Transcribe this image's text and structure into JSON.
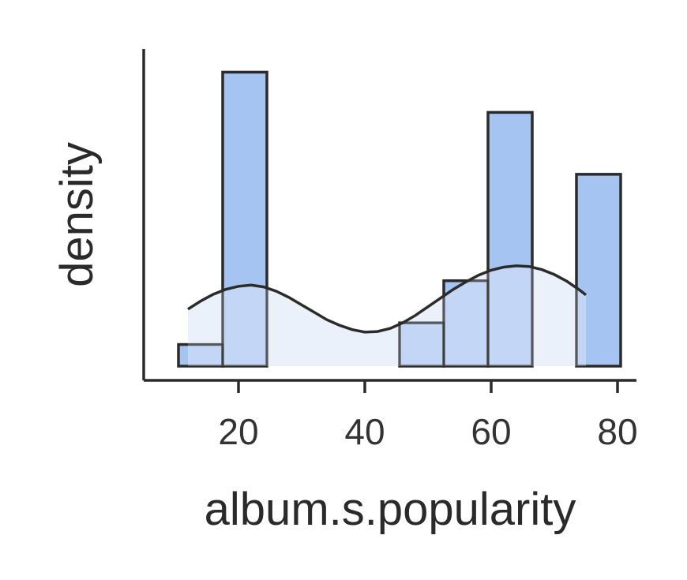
{
  "chart_data": {
    "type": "histogram",
    "xlabel": "album.s.popularity",
    "ylabel": "density",
    "xlim": [
      5,
      83
    ],
    "ylim": [
      0,
      0.051
    ],
    "x_ticks": [
      20,
      40,
      60,
      80
    ],
    "bins": [
      {
        "x0": 10.5,
        "x1": 17.5,
        "density": 0.0035
      },
      {
        "x0": 17.5,
        "x1": 24.5,
        "density": 0.0475
      },
      {
        "x0": 24.5,
        "x1": 31.5,
        "density": 0
      },
      {
        "x0": 31.5,
        "x1": 38.5,
        "density": 0
      },
      {
        "x0": 38.5,
        "x1": 45.5,
        "density": 0
      },
      {
        "x0": 45.5,
        "x1": 52.5,
        "density": 0.007
      },
      {
        "x0": 52.5,
        "x1": 59.5,
        "density": 0.0138
      },
      {
        "x0": 59.5,
        "x1": 66.5,
        "density": 0.041
      },
      {
        "x0": 66.5,
        "x1": 73.5,
        "density": 0
      },
      {
        "x0": 73.5,
        "x1": 80.5,
        "density": 0.031
      }
    ],
    "kde": {
      "x": [
        12,
        14,
        16,
        18,
        20,
        22,
        24,
        26,
        28,
        30,
        32,
        34,
        36,
        38,
        40,
        42,
        44,
        46,
        48,
        50,
        52,
        54,
        56,
        58,
        60,
        62,
        64,
        66,
        68,
        70,
        72,
        74,
        75
      ],
      "y": [
        0.0092,
        0.0105,
        0.0116,
        0.0124,
        0.0129,
        0.0131,
        0.0128,
        0.0121,
        0.0111,
        0.0099,
        0.0087,
        0.0075,
        0.0066,
        0.0059,
        0.0055,
        0.0056,
        0.0061,
        0.007,
        0.0082,
        0.0096,
        0.011,
        0.0124,
        0.0136,
        0.0147,
        0.0155,
        0.016,
        0.0162,
        0.0161,
        0.0156,
        0.0148,
        0.0137,
        0.0123,
        0.0115
      ]
    },
    "colors": {
      "bar_fill": "#a6c4f2",
      "bar_edge": "#2b2b2b",
      "kde_fill": "#dbe6f8",
      "kde_line": "#2b2b2b",
      "axis": "#2b2b2b",
      "text": "#333333"
    },
    "grid": false,
    "legend": "none"
  }
}
